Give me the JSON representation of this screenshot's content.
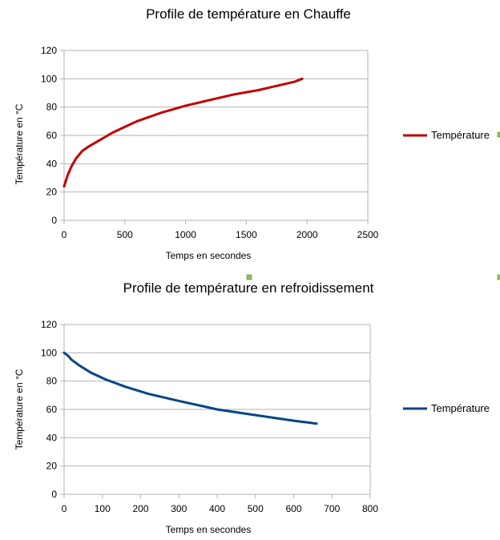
{
  "chart_data": [
    {
      "type": "line",
      "title": "Profile de température en Chauffe",
      "xlabel": "Temps en secondes",
      "ylabel": "Température en °C",
      "xlim": [
        0,
        2500
      ],
      "ylim": [
        0,
        120
      ],
      "xticks": [
        0,
        500,
        1000,
        1500,
        2000,
        2500
      ],
      "yticks": [
        0,
        20,
        40,
        60,
        80,
        100,
        120
      ],
      "grid": "horizontal",
      "legend": "right",
      "series": [
        {
          "name": "Température",
          "color": "#c00000",
          "x": [
            0,
            30,
            60,
            100,
            150,
            200,
            300,
            400,
            500,
            600,
            700,
            800,
            900,
            1000,
            1100,
            1200,
            1300,
            1400,
            1500,
            1600,
            1700,
            1800,
            1900,
            1960
          ],
          "y": [
            24,
            32,
            38,
            44,
            49,
            52,
            57,
            62,
            66,
            70,
            73,
            76,
            78.5,
            81,
            83,
            85,
            87,
            89,
            90.5,
            92,
            94,
            96,
            98,
            100
          ]
        }
      ]
    },
    {
      "type": "line",
      "title": "Profile de température en refroidissement",
      "xlabel": "Temps en secondes",
      "ylabel": "Température en °C",
      "xlim": [
        0,
        800
      ],
      "ylim": [
        0,
        120
      ],
      "xticks": [
        0,
        100,
        200,
        300,
        400,
        500,
        600,
        700,
        800
      ],
      "yticks": [
        0,
        20,
        40,
        60,
        80,
        100,
        120
      ],
      "grid": "horizontal",
      "legend": "right",
      "series": [
        {
          "name": "Température",
          "color": "#004586",
          "x": [
            0,
            10,
            20,
            40,
            70,
            110,
            160,
            220,
            300,
            400,
            500,
            600,
            660
          ],
          "y": [
            100,
            98,
            95,
            91,
            86,
            81,
            76,
            71,
            66,
            60,
            56,
            52,
            50
          ]
        }
      ]
    }
  ]
}
